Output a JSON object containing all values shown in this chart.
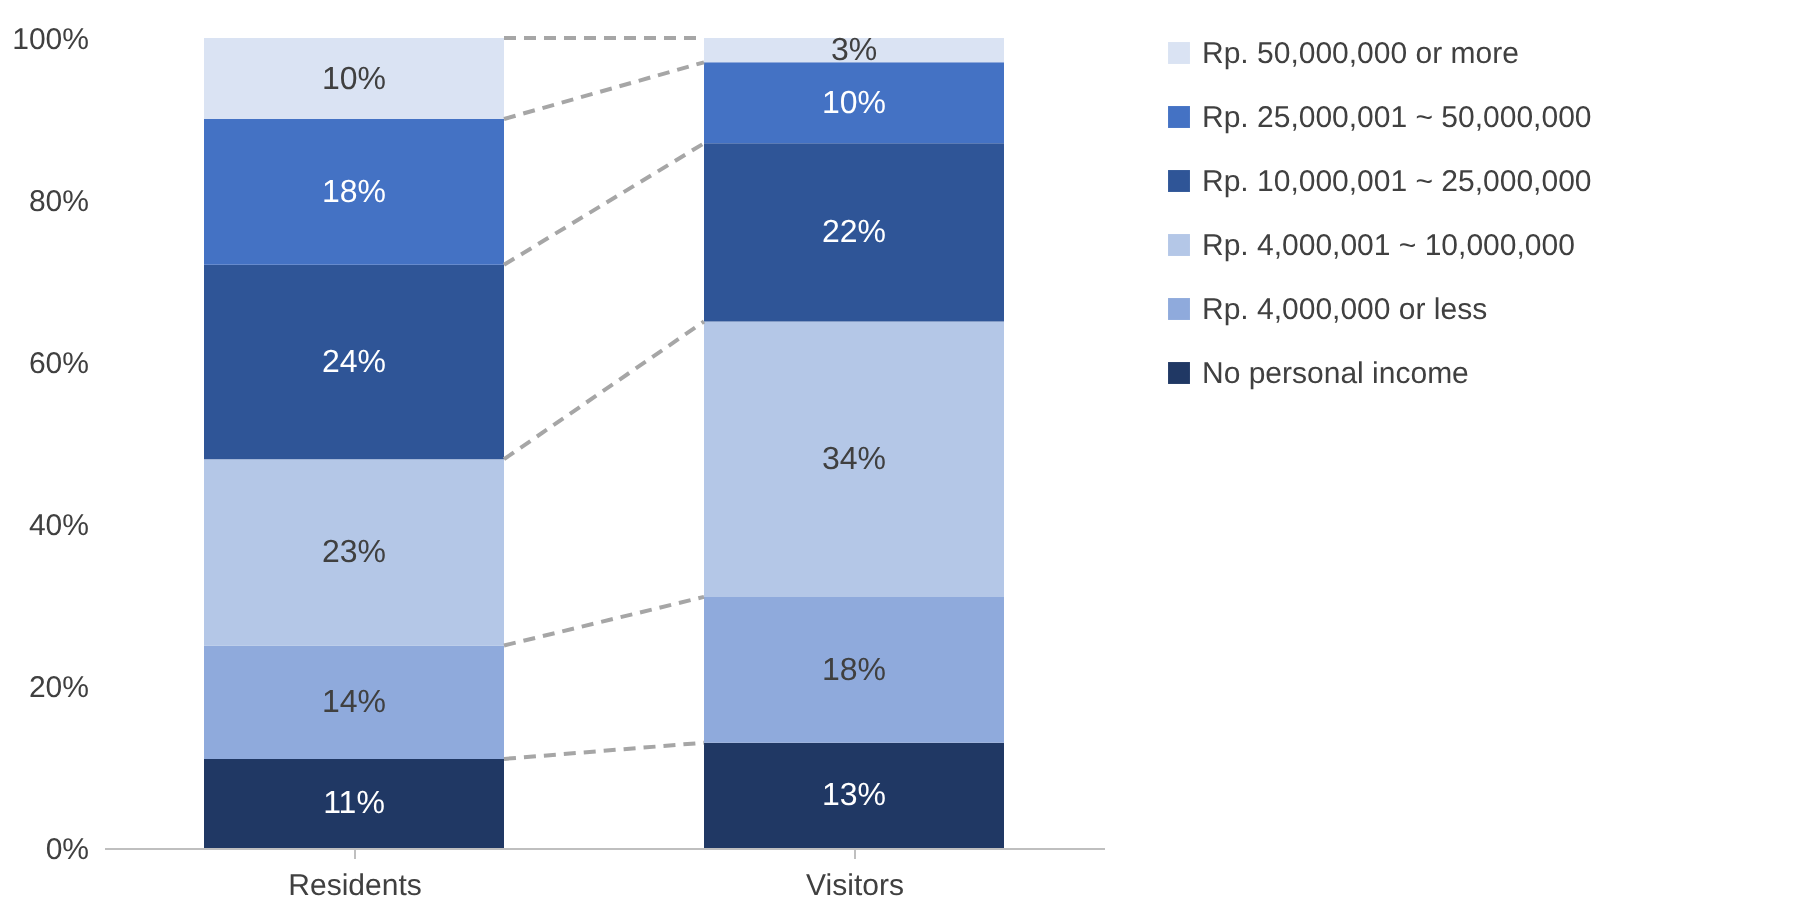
{
  "chart_data": {
    "type": "bar",
    "stacked": true,
    "data_labels": true,
    "legend": "right",
    "grid": false,
    "categories": [
      "Residents",
      "Visitors"
    ],
    "ylim": [
      0,
      100
    ],
    "yticks": [
      {
        "value": 0,
        "label": "0%"
      },
      {
        "value": 20,
        "label": "20%"
      },
      {
        "value": 40,
        "label": "40%"
      },
      {
        "value": 60,
        "label": "60%"
      },
      {
        "value": 80,
        "label": "80%"
      },
      {
        "value": 100,
        "label": "100%"
      }
    ],
    "series": [
      {
        "name": "No personal income",
        "color": "#203864",
        "values": [
          11,
          13
        ],
        "value_labels": [
          "11%",
          "13%"
        ]
      },
      {
        "name": "Rp. 4,000,000 or less",
        "color": "#8faadc",
        "values": [
          14,
          18
        ],
        "value_labels": [
          "14%",
          "18%"
        ]
      },
      {
        "name": "Rp. 4,000,001 ~ 10,000,000",
        "color": "#b4c7e7",
        "values": [
          23,
          34
        ],
        "value_labels": [
          "23%",
          "34%"
        ]
      },
      {
        "name": "Rp. 10,000,001 ~ 25,000,000",
        "color": "#2f5597",
        "values": [
          24,
          22
        ],
        "value_labels": [
          "24%",
          "22%"
        ]
      },
      {
        "name": "Rp. 25,000,001 ~ 50,000,000",
        "color": "#4472c4",
        "values": [
          18,
          10
        ],
        "value_labels": [
          "18%",
          "10%"
        ]
      },
      {
        "name": "Rp. 50,000,000 or more",
        "color": "#dae3f3",
        "values": [
          10,
          3
        ],
        "value_labels": [
          "10%",
          "3%"
        ]
      }
    ]
  }
}
